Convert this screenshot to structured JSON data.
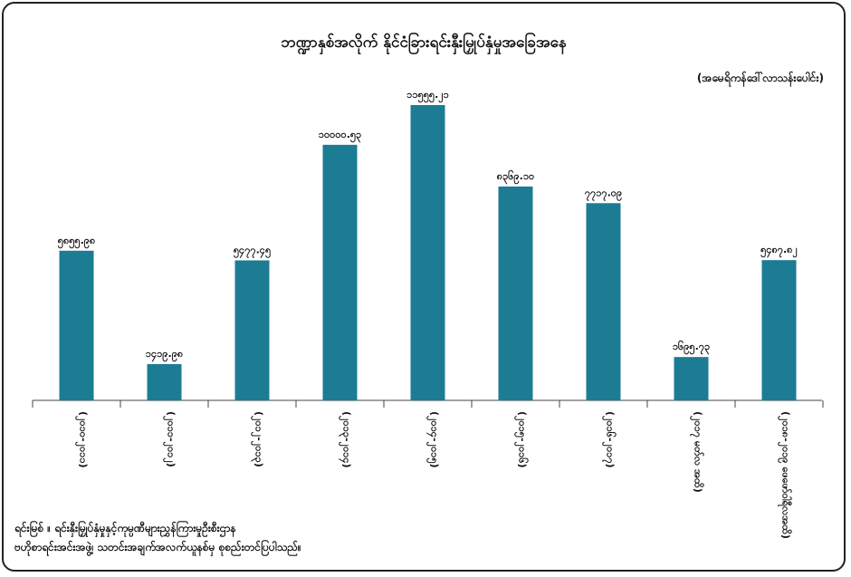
{
  "chart_data": {
    "type": "bar",
    "title": "ဘဏ္ဍာနှစ်အလိုက် နိုင်ငံခြားရင်းနှီးမြှုပ်နှံမှုအခြေအနေ",
    "unit": "(အမေရိကန်ဒေါ်လာသန်းပေါင်း)",
    "categories": [
      "(၂၀၁၀-၂၀၁၁)",
      "(၂၀၁၁-၂၀၁၂)",
      "(၂၀၁၂-၂၀၁၃)",
      "(၂၀၁၃-၂၀၁၄)",
      "(၂၀၁၄-၂၀၁၅)",
      "(၂၀၁၅-၂၀၁၆)",
      "(၂၀၁၆-၂၀၁၇)",
      "(၂၀၁၇ မတ်လ အထိ)",
      "(၂၀၁၈-၂၀၁၉ ဖေဖော်ဝါရီလအထိ)"
    ],
    "values": [
      5855.98,
      1419.98,
      5477.45,
      10000.53,
      11555.21,
      8369.1,
      7717.09,
      1695.73,
      5487.82
    ],
    "value_labels": [
      "၅၈၅၅.၉၈",
      "၁၄၁၉.၉၈",
      "၅၄၇၇.၄၅",
      "၁၀၀၀၀.၅၃",
      "၁၁၅၅၅.၂၁",
      "၈၃၆၉.၁၀",
      "၇၇၁၇.၀၉",
      "၁၆၉၅.၇၃",
      "၅၄၈၇.၈၂"
    ],
    "ylim": [
      0,
      11555.21
    ],
    "bar_color": "#1b7c94",
    "grid": false,
    "legend": "none"
  },
  "source_lines": [
    "ရင်းမြစ် ။ ရင်းနှီးမြှုပ်နှံမှုနှင့်ကုမ္ပဏီများညွှန်ကြားမှုဦးစီးဌာန",
    "ဗဟိုစာရင်းအင်းအဖွဲ့၊ သတင်းအချက်အလက်ယူနစ်မှ စုစည်းတင်ပြပါသည်။"
  ]
}
